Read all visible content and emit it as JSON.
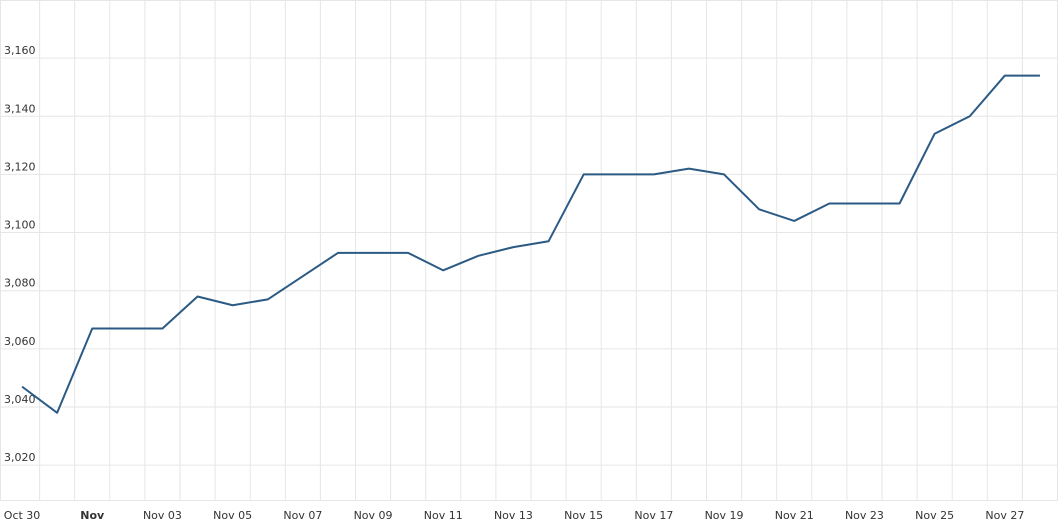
{
  "chart_data": {
    "type": "line",
    "categories": [
      "Oct 30",
      null,
      "Nov",
      null,
      "Nov 03",
      null,
      "Nov 05",
      null,
      "Nov 07",
      null,
      "Nov 09",
      null,
      "Nov 11",
      null,
      "Nov 13",
      null,
      "Nov 15",
      null,
      "Nov 17",
      null,
      "Nov 19",
      null,
      "Nov 21",
      null,
      "Nov 23",
      null,
      "Nov 25",
      null,
      "Nov 27",
      null
    ],
    "values": [
      3047,
      3038,
      3067,
      3067,
      3067,
      3078,
      3075,
      3077,
      3085,
      3093,
      3093,
      3093,
      3087,
      3092,
      3095,
      3097,
      3120,
      3120,
      3120,
      3122,
      3120,
      3108,
      3104,
      3110,
      3110,
      3110,
      3134,
      3140,
      3154,
      3154
    ],
    "color": "#2b5a84",
    "ylim": [
      3008,
      3180
    ],
    "yticks": [
      {
        "value": 3020,
        "label": "3,020"
      },
      {
        "value": 3040,
        "label": "3,040"
      },
      {
        "value": 3060,
        "label": "3,060"
      },
      {
        "value": 3080,
        "label": "3,080"
      },
      {
        "value": 3100,
        "label": "3,100"
      },
      {
        "value": 3120,
        "label": "3,120"
      },
      {
        "value": 3140,
        "label": "3,140"
      },
      {
        "value": 3160,
        "label": "3,160"
      }
    ],
    "grid": true
  }
}
